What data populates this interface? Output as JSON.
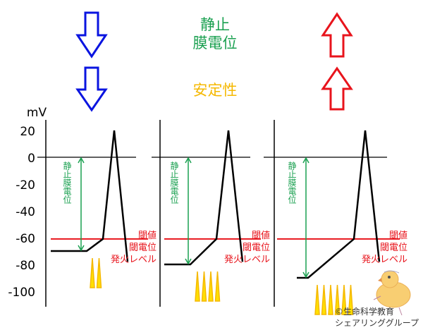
{
  "header": {
    "title_line1": "静止",
    "title_line2": "膜電位",
    "stability_label": "安定性",
    "left_arrows": "down",
    "right_arrows": "up"
  },
  "y_axis": {
    "unit": "mV",
    "ticks": [
      "20",
      "0",
      "-20",
      "-40",
      "-60",
      "-80",
      "-100"
    ]
  },
  "panels": [
    {
      "resting_mV": -70,
      "threshold_mV": -61,
      "peak_mV": 20,
      "stimuli": 2,
      "resting_label": "静止膜電位",
      "threshold_labels": [
        "閾値",
        "閾電位",
        "発火レベル"
      ]
    },
    {
      "resting_mV": -80,
      "threshold_mV": -61,
      "peak_mV": 20,
      "stimuli": 4,
      "resting_label": "静止膜電位",
      "threshold_labels": [
        "閾値",
        "閾電位",
        "発火レベル"
      ]
    },
    {
      "resting_mV": -90,
      "threshold_mV": -61,
      "peak_mV": 20,
      "stimuli": 6,
      "resting_label": "静止膜電位",
      "threshold_labels": [
        "閾値",
        "閾電位",
        "発火レベル"
      ]
    }
  ],
  "credit": {
    "line1": "©生命科学教育",
    "line2": "シェアリンググループ"
  },
  "colors": {
    "green": "#1aa050",
    "yellow": "#f5b800",
    "red": "#e8141c",
    "blue": "#0a14e0",
    "black": "#000000"
  }
}
